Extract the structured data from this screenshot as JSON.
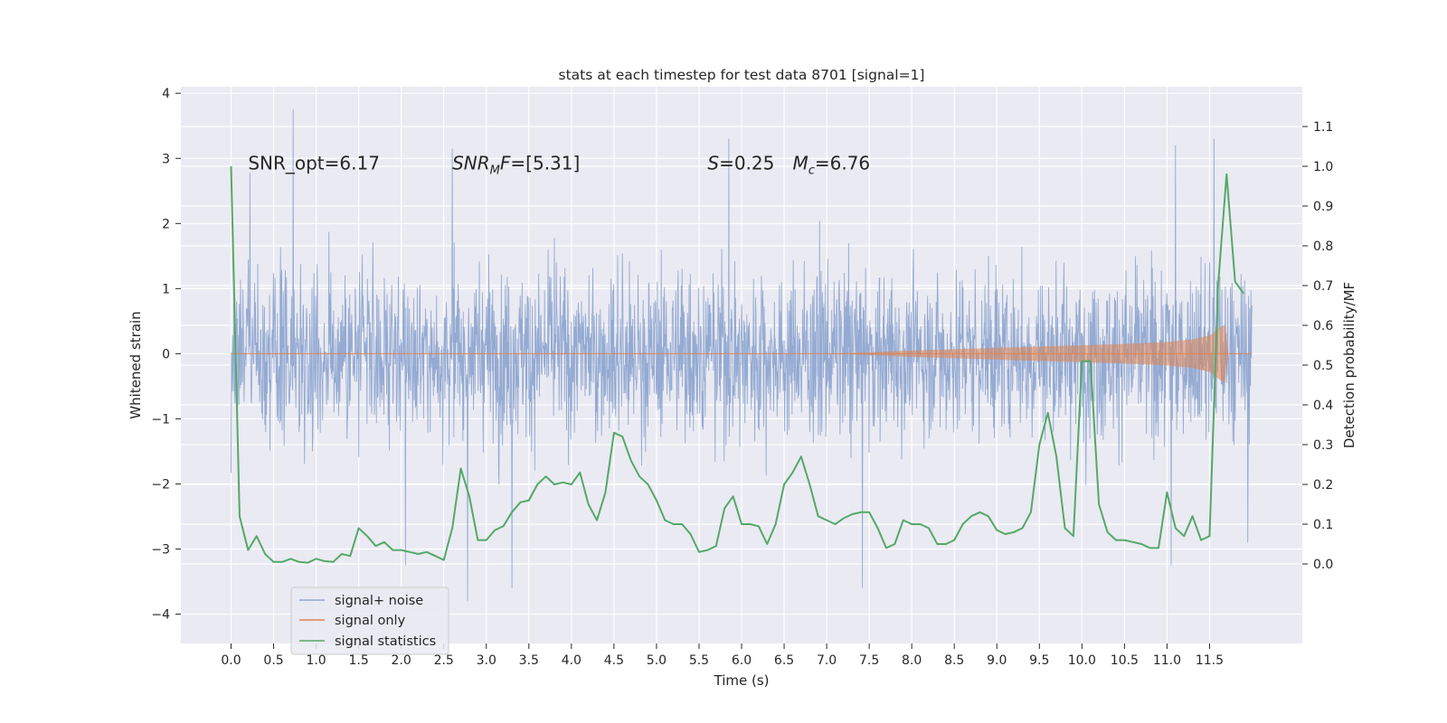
{
  "chart_data": {
    "type": "line",
    "title": "stats at each timestep for test data 8701 [signal=1]",
    "xlabel": "Time (s)",
    "ylabel": "Whitened strain",
    "ylabel_right": "Detection probability/MF",
    "xlim": [
      -0.59,
      12.59
    ],
    "ylim": [
      -4.45,
      4.1
    ],
    "ylim_right": [
      -0.2,
      1.2
    ],
    "xticks": [
      0.0,
      0.5,
      1.0,
      1.5,
      2.0,
      2.5,
      3.0,
      3.5,
      4.0,
      4.5,
      5.0,
      5.5,
      6.0,
      6.5,
      7.0,
      7.5,
      8.0,
      8.5,
      9.0,
      9.5,
      10.0,
      10.5,
      11.0,
      11.5
    ],
    "xtick_labels": [
      "0.0",
      "0.5",
      "1.0",
      "1.5",
      "2.0",
      "2.5",
      "3.0",
      "3.5",
      "4.0",
      "4.5",
      "5.0",
      "5.5",
      "6.0",
      "6.5",
      "7.0",
      "7.5",
      "8.0",
      "8.5",
      "9.0",
      "9.5",
      "10.0",
      "10.5",
      "11.0",
      "11.5"
    ],
    "yticks": [
      -4,
      -3,
      -2,
      -1,
      0,
      1,
      2,
      3,
      4
    ],
    "ytick_labels": [
      "−4",
      "−3",
      "−2",
      "−1",
      "0",
      "1",
      "2",
      "3",
      "4"
    ],
    "yticks_right": [
      0.0,
      0.1,
      0.2,
      0.3,
      0.4,
      0.5,
      0.6,
      0.7,
      0.8,
      0.9,
      1.0,
      1.1
    ],
    "ytick_labels_right": [
      "0.0",
      "0.1",
      "0.2",
      "0.3",
      "0.4",
      "0.5",
      "0.6",
      "0.7",
      "0.8",
      "0.9",
      "1.0",
      "1.1"
    ],
    "grid": true,
    "legend_position": "bottom-left",
    "annotations": [
      {
        "text": "SNR_opt=6.17",
        "x": 0.2,
        "y": 2.93
      },
      {
        "text": "SNR_MF=[5.31]",
        "x": 2.6,
        "y": 2.93
      },
      {
        "text": "S=0.25",
        "x": 5.6,
        "y": 2.93
      },
      {
        "text": "M_c=6.76",
        "x": 6.6,
        "y": 2.93
      }
    ],
    "series": [
      {
        "name": "signal+ noise",
        "axis": "left",
        "color": "#8fa6d0",
        "x_range": [
          0.0,
          12.0
        ],
        "typical_envelope": [
          -1.4,
          1.65
        ],
        "extremes": [
          {
            "x": 0.73,
            "y": 3.75
          },
          {
            "x": 2.6,
            "y": 3.15
          },
          {
            "x": 5.85,
            "y": 3.3
          },
          {
            "x": 11.55,
            "y": 3.3
          },
          {
            "x": 11.1,
            "y": 3.2
          },
          {
            "x": 2.78,
            "y": -3.8
          },
          {
            "x": 3.3,
            "y": -3.6
          },
          {
            "x": 7.42,
            "y": -3.6
          },
          {
            "x": 2.05,
            "y": -3.25
          },
          {
            "x": 11.05,
            "y": -3.25
          },
          {
            "x": 11.95,
            "y": -2.9
          }
        ]
      },
      {
        "name": "signal only",
        "axis": "left",
        "color": "#dd8452",
        "x": [
          0.0,
          7.0,
          7.5,
          8.0,
          8.5,
          9.0,
          9.5,
          10.0,
          10.5,
          11.0,
          11.3,
          11.5,
          11.62,
          11.68,
          11.72,
          11.8,
          12.0
        ],
        "amplitude": [
          0.0,
          0.0,
          0.02,
          0.05,
          0.07,
          0.09,
          0.11,
          0.13,
          0.15,
          0.18,
          0.22,
          0.28,
          0.4,
          0.45,
          0.0,
          0.0,
          0.0
        ]
      },
      {
        "name": "signal statistics",
        "axis": "right",
        "color": "#55a868",
        "x": [
          0.0,
          0.1,
          0.2,
          0.3,
          0.4,
          0.5,
          0.6,
          0.7,
          0.8,
          0.9,
          1.0,
          1.1,
          1.2,
          1.3,
          1.4,
          1.5,
          1.6,
          1.7,
          1.8,
          1.9,
          2.0,
          2.1,
          2.2,
          2.3,
          2.4,
          2.5,
          2.6,
          2.7,
          2.8,
          2.9,
          3.0,
          3.1,
          3.2,
          3.3,
          3.4,
          3.5,
          3.6,
          3.7,
          3.8,
          3.9,
          4.0,
          4.1,
          4.2,
          4.3,
          4.4,
          4.5,
          4.6,
          4.7,
          4.8,
          4.9,
          5.0,
          5.1,
          5.2,
          5.3,
          5.4,
          5.5,
          5.6,
          5.7,
          5.8,
          5.9,
          6.0,
          6.1,
          6.2,
          6.3,
          6.4,
          6.5,
          6.6,
          6.7,
          6.8,
          6.9,
          7.0,
          7.1,
          7.2,
          7.3,
          7.4,
          7.5,
          7.6,
          7.7,
          7.8,
          7.9,
          8.0,
          8.1,
          8.2,
          8.3,
          8.4,
          8.5,
          8.6,
          8.7,
          8.8,
          8.9,
          9.0,
          9.1,
          9.2,
          9.3,
          9.4,
          9.5,
          9.6,
          9.7,
          9.8,
          9.9,
          10.0,
          10.1,
          10.2,
          10.3,
          10.4,
          10.5,
          10.6,
          10.7,
          10.8,
          10.9,
          11.0,
          11.1,
          11.2,
          11.3,
          11.4,
          11.5,
          11.6,
          11.7,
          11.8,
          11.9
        ],
        "y": [
          1.0,
          0.12,
          0.035,
          0.07,
          0.025,
          0.005,
          0.005,
          0.013,
          0.005,
          0.003,
          0.013,
          0.007,
          0.005,
          0.025,
          0.02,
          0.09,
          0.07,
          0.045,
          0.055,
          0.035,
          0.035,
          0.03,
          0.025,
          0.03,
          0.02,
          0.01,
          0.09,
          0.24,
          0.17,
          0.06,
          0.06,
          0.085,
          0.095,
          0.13,
          0.155,
          0.16,
          0.2,
          0.22,
          0.2,
          0.205,
          0.2,
          0.23,
          0.15,
          0.11,
          0.18,
          0.33,
          0.32,
          0.26,
          0.22,
          0.2,
          0.16,
          0.11,
          0.1,
          0.1,
          0.075,
          0.03,
          0.035,
          0.045,
          0.14,
          0.17,
          0.1,
          0.1,
          0.095,
          0.05,
          0.1,
          0.2,
          0.23,
          0.27,
          0.2,
          0.12,
          0.11,
          0.1,
          0.115,
          0.125,
          0.13,
          0.13,
          0.09,
          0.04,
          0.05,
          0.11,
          0.1,
          0.1,
          0.09,
          0.05,
          0.05,
          0.06,
          0.1,
          0.12,
          0.13,
          0.12,
          0.085,
          0.075,
          0.08,
          0.09,
          0.13,
          0.3,
          0.38,
          0.27,
          0.09,
          0.07,
          0.51,
          0.51,
          0.15,
          0.08,
          0.06,
          0.06,
          0.055,
          0.05,
          0.04,
          0.04,
          0.18,
          0.09,
          0.07,
          0.12,
          0.06,
          0.07,
          0.7,
          0.98,
          0.71,
          0.68
        ]
      }
    ]
  }
}
